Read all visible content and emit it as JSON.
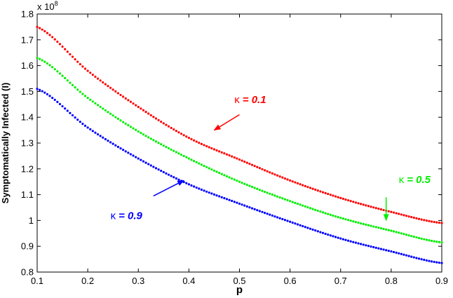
{
  "chart_data": {
    "type": "line",
    "title": "",
    "xlabel": "p",
    "ylabel": "Symptomatically Infected (I)",
    "y_exponent_label": "x 10",
    "y_exponent_power": "8",
    "xlim": [
      0.1,
      0.9
    ],
    "ylim": [
      0.8,
      1.8
    ],
    "xticks": [
      "0.1",
      "0.2",
      "0.3",
      "0.4",
      "0.5",
      "0.6",
      "0.7",
      "0.8",
      "0.9"
    ],
    "yticks": [
      "0.8",
      "0.9",
      "1",
      "1.1",
      "1.2",
      "1.3",
      "1.4",
      "1.5",
      "1.6",
      "1.7",
      "1.8"
    ],
    "grid": false,
    "legend": "none",
    "x": [
      0.1,
      0.2,
      0.3,
      0.4,
      0.5,
      0.6,
      0.7,
      0.8,
      0.9
    ],
    "series": [
      {
        "kappa_symbol": "κ",
        "label": "= 0.1",
        "color": "#ff0000",
        "values": [
          1.75,
          1.58,
          1.44,
          1.32,
          1.236,
          1.155,
          1.087,
          1.033,
          0.99
        ]
      },
      {
        "kappa_symbol": "κ",
        "label": "= 0.5",
        "color": "#00ee00",
        "values": [
          1.63,
          1.475,
          1.345,
          1.24,
          1.15,
          1.075,
          1.01,
          0.96,
          0.915
        ]
      },
      {
        "kappa_symbol": "κ",
        "label": "= 0.9",
        "color": "#0000ff",
        "values": [
          1.51,
          1.36,
          1.24,
          1.14,
          1.065,
          0.995,
          0.93,
          0.88,
          0.835
        ]
      }
    ],
    "annotations": [
      {
        "series": 0,
        "text_x": 0.49,
        "text_y": 1.455,
        "arrow_from": [
          0.5,
          1.41
        ],
        "arrow_to": [
          0.45,
          1.35
        ]
      },
      {
        "series": 1,
        "text_x": 0.815,
        "text_y": 1.145,
        "arrow_from": [
          0.79,
          1.09
        ],
        "arrow_to": [
          0.79,
          1.0
        ]
      },
      {
        "series": 2,
        "text_x": 0.245,
        "text_y": 1.005,
        "arrow_from": [
          0.33,
          1.095
        ],
        "arrow_to": [
          0.39,
          1.155
        ]
      }
    ]
  }
}
